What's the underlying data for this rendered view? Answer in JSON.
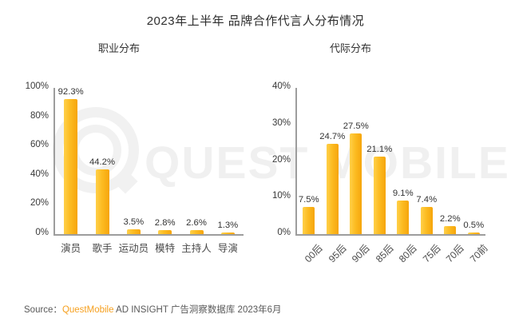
{
  "title": "2023年上半年 品牌合作代言人分布情况",
  "watermark": {
    "text": "QUEST MOBILE"
  },
  "source": {
    "label": "Source：",
    "brand": "QuestMobile",
    "rest": " AD INSIGHT 广告洞察数据库 2023年6月"
  },
  "colors": {
    "bar_gradient_start": "#FFD04A",
    "bar_gradient_end": "#F6A50B",
    "axis": "#9D9D9D",
    "brand_orange": "#F6A01F",
    "watermark_gray": "#F0F0F0"
  },
  "chart_data": [
    {
      "type": "bar",
      "title": "职业分布",
      "categories": [
        "演员",
        "歌手",
        "运动员",
        "模特",
        "主持人",
        "导演"
      ],
      "values": [
        92.3,
        44.2,
        3.5,
        2.8,
        2.6,
        1.3
      ],
      "value_labels": [
        "92.3%",
        "44.2%",
        "3.5%",
        "2.8%",
        "2.6%",
        "1.3%"
      ],
      "xlabel": "",
      "ylabel": "",
      "ylim": [
        0,
        100
      ],
      "yticks": [
        "100%",
        "80%",
        "60%",
        "40%",
        "20%",
        "0%"
      ],
      "grid": false,
      "legend": "none",
      "x_label_rotation": 0
    },
    {
      "type": "bar",
      "title": "代际分布",
      "categories": [
        "00后",
        "95后",
        "90后",
        "85后",
        "80后",
        "75后",
        "70后",
        "70前"
      ],
      "values": [
        7.5,
        24.7,
        27.5,
        21.1,
        9.1,
        7.4,
        2.2,
        0.5
      ],
      "value_labels": [
        "7.5%",
        "24.7%",
        "27.5%",
        "21.1%",
        "9.1%",
        "7.4%",
        "2.2%",
        "0.5%"
      ],
      "xlabel": "",
      "ylabel": "",
      "ylim": [
        0,
        40
      ],
      "yticks": [
        "40%",
        "30%",
        "20%",
        "10%",
        "0%"
      ],
      "grid": false,
      "legend": "none",
      "x_label_rotation": -45
    }
  ]
}
